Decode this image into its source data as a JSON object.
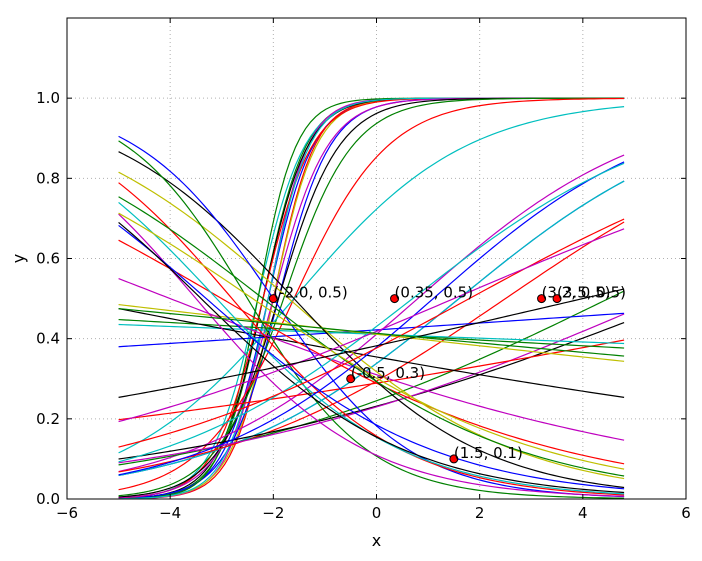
{
  "chart_data": {
    "type": "line",
    "title": "",
    "xlabel": "x",
    "ylabel": "y",
    "xlim": [
      -6,
      6
    ],
    "ylim": [
      0,
      1.2
    ],
    "x_range": [
      -5,
      4.8
    ],
    "x_ticks": [
      "−6",
      "−4",
      "−2",
      "0",
      "2",
      "4",
      "6"
    ],
    "y_ticks": [
      "0.0",
      "0.2",
      "0.4",
      "0.6",
      "0.8",
      "1.0"
    ],
    "grid": true,
    "series": [
      {
        "color": "#0000ff",
        "k": 2.3,
        "x0": -2.1
      },
      {
        "color": "#008000",
        "k": 2.4,
        "x0": -2.2
      },
      {
        "color": "#ff0000",
        "k": 2.5,
        "x0": -2.0
      },
      {
        "color": "#00bfbf",
        "k": 2.2,
        "x0": -2.3
      },
      {
        "color": "#bf00bf",
        "k": 2.6,
        "x0": -2.1
      },
      {
        "color": "#bfbf00",
        "k": 2.4,
        "x0": -2.0
      },
      {
        "color": "#000000",
        "k": 2.3,
        "x0": -2.2
      },
      {
        "color": "#0000ff",
        "k": 2.0,
        "x0": -1.9
      },
      {
        "color": "#008000",
        "k": 2.7,
        "x0": -2.3
      },
      {
        "color": "#ff0000",
        "k": 2.1,
        "x0": -2.2
      },
      {
        "color": "#00bfbf",
        "k": 2.5,
        "x0": -2.1
      },
      {
        "color": "#bf00bf",
        "k": 1.9,
        "x0": -2.0
      },
      {
        "color": "#000000",
        "k": 1.7,
        "x0": -1.9
      },
      {
        "color": "#008000",
        "k": 1.5,
        "x0": -1.8
      },
      {
        "color": "#ff0000",
        "k": 1.1,
        "x0": -1.6
      },
      {
        "color": "#00bfbf",
        "k": 0.6,
        "x0": -1.6
      },
      {
        "color": "#bf00bf",
        "k": 0.45,
        "x0": 0.8
      },
      {
        "color": "#0000ff",
        "k": 0.42,
        "x0": 1.6
      },
      {
        "color": "#00bfbf",
        "k": 0.42,
        "x0": 1.6
      },
      {
        "color": "#ff0000",
        "k": 0.35,
        "x0": 2.5
      },
      {
        "color": "#008000",
        "k": 0.25,
        "x0": 4.5
      },
      {
        "color": "#000000",
        "k": 0.2,
        "x0": 6.0
      },
      {
        "color": "#bf00bf",
        "k": 0.22,
        "x0": 5.5
      },
      {
        "color": "#ff0000",
        "k": 0.1,
        "x0": 9.0
      },
      {
        "color": "#0000ff",
        "k": 0.035,
        "x0": 9.0
      },
      {
        "color": "#008000",
        "k": -0.03,
        "x0": -12.0
      },
      {
        "color": "#00bfbf",
        "k": -0.02,
        "x0": -18.0
      },
      {
        "color": "#bfbf00",
        "k": -0.06,
        "x0": -6.0
      },
      {
        "color": "#000000",
        "k": -0.1,
        "x0": -6.0
      },
      {
        "color": "#bf00bf",
        "k": -0.2,
        "x0": -4.0
      },
      {
        "color": "#ff0000",
        "k": -0.3,
        "x0": -3.0
      },
      {
        "color": "#bfbf00",
        "k": -0.45,
        "x0": -1.7
      },
      {
        "color": "#000000",
        "k": -0.55,
        "x0": -1.6
      },
      {
        "color": "#0000ff",
        "k": -0.75,
        "x0": -2.0
      },
      {
        "color": "#008000",
        "k": -0.85,
        "x0": -2.5
      },
      {
        "color": "#ff0000",
        "k": -0.6,
        "x0": -2.8
      },
      {
        "color": "#bf00bf",
        "k": -0.6,
        "x0": -3.5
      },
      {
        "color": "#00bfbf",
        "k": -0.55,
        "x0": -3.1
      },
      {
        "color": "#0000ff",
        "k": -0.45,
        "x0": -3.3
      },
      {
        "color": "#000000",
        "k": -0.5,
        "x0": -3.4
      },
      {
        "color": "#008000",
        "k": -0.4,
        "x0": -2.2
      },
      {
        "color": "#bfbf00",
        "k": -0.35,
        "x0": -2.4
      },
      {
        "color": "#0000ff",
        "k": 0.45,
        "x0": 1.1
      },
      {
        "color": "#00bfbf",
        "k": 0.4,
        "x0": 0.7
      },
      {
        "color": "#ff0000",
        "k": 0.28,
        "x0": 1.8
      },
      {
        "color": "#bf00bf",
        "k": 0.22,
        "x0": 1.5
      },
      {
        "color": "#000000",
        "k": 0.12,
        "x0": 4.0
      },
      {
        "color": "#008000",
        "k": -0.05,
        "x0": -7.0
      }
    ],
    "points": [
      {
        "x": -2.0,
        "y": 0.5,
        "label": "(-2.0, 0.5)"
      },
      {
        "x": 0.35,
        "y": 0.5,
        "label": "(0.35, 0.5)"
      },
      {
        "x": 3.2,
        "y": 0.5,
        "label": "(3.2, 0.5)"
      },
      {
        "x": 3.5,
        "y": 0.5,
        "label": "(3.5, 0.5)"
      },
      {
        "x": -0.5,
        "y": 0.3,
        "label": "(-0.5, 0.3)"
      },
      {
        "x": 1.5,
        "y": 0.1,
        "label": "(1.5, 0.1)"
      }
    ],
    "point_color": "#ff0000"
  }
}
